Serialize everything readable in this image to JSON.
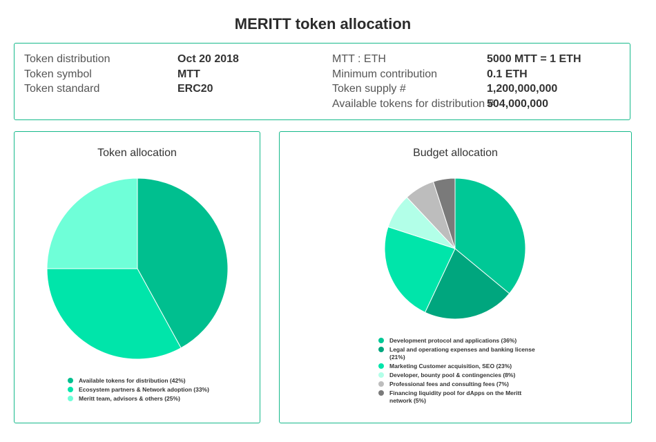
{
  "page": {
    "title": "MERITT token allocation"
  },
  "info": {
    "left": [
      {
        "label": "Token distribution",
        "value": "Oct 20 2018"
      },
      {
        "label": "Token symbol",
        "value": "MTT"
      },
      {
        "label": "Token standard",
        "value": "ERC20"
      }
    ],
    "right": [
      {
        "label": "MTT : ETH",
        "value": "5000 MTT = 1 ETH"
      },
      {
        "label": "Minimum contribution",
        "value": "0.1 ETH"
      },
      {
        "label": "Token supply #",
        "value": "1,200,000,000"
      },
      {
        "label": "Available tokens for distribution #",
        "value": "504,000,000"
      }
    ]
  },
  "chart_data": [
    {
      "type": "pie",
      "title": "Token allocation",
      "labels": [
        "Available tokens for distribution (42%)",
        "Ecosystem partners & Network adoption (33%)",
        "Meritt team, advisors & others (25%)"
      ],
      "values": [
        42,
        33,
        25
      ],
      "colors": [
        "#00bf8f",
        "#00e5aa",
        "#6fffd8"
      ],
      "legend_position": "bottom"
    },
    {
      "type": "pie",
      "title": "Budget allocation",
      "labels": [
        "Development protocol and applications (36%)",
        "Legal and operationg expenses and banking license (21%)",
        "Marketing Customer acquisition, SEO (23%)",
        "Developer, bounty pool & contingencies (8%)",
        "Professional fees and consulting fees (7%)",
        "Financing liquidity pool for dApps on the Meritt network (5%)"
      ],
      "values": [
        36,
        21,
        23,
        8,
        7,
        5
      ],
      "colors": [
        "#00c896",
        "#00a67e",
        "#00e5aa",
        "#b2ffe8",
        "#bdbdbd",
        "#7a7a7a"
      ],
      "legend_position": "bottom"
    }
  ]
}
